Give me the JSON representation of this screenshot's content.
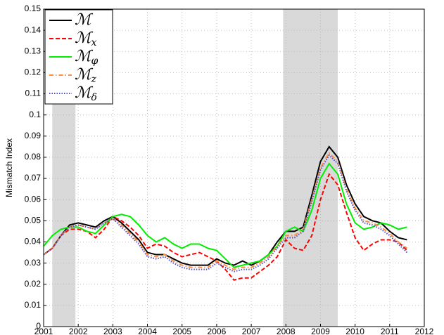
{
  "chart_data": {
    "type": "line",
    "ylabel": "Mismatch Index",
    "x": [
      2001,
      2001.25,
      2001.5,
      2001.75,
      2002,
      2002.25,
      2002.5,
      2002.75,
      2003,
      2003.25,
      2003.5,
      2003.75,
      2004,
      2004.25,
      2004.5,
      2004.75,
      2005,
      2005.25,
      2005.5,
      2005.75,
      2006,
      2006.25,
      2006.5,
      2006.75,
      2007,
      2007.25,
      2007.5,
      2007.75,
      2008,
      2008.25,
      2008.5,
      2008.75,
      2009,
      2009.25,
      2009.5,
      2009.75,
      2010,
      2010.25,
      2010.5,
      2010.75,
      2011,
      2011.25,
      2011.5
    ],
    "series": [
      {
        "name": "ℳ",
        "color": "#000000",
        "dash": "solid",
        "values": [
          0.034,
          0.037,
          0.043,
          0.048,
          0.049,
          0.048,
          0.047,
          0.05,
          0.052,
          0.049,
          0.045,
          0.041,
          0.035,
          0.034,
          0.034,
          0.032,
          0.03,
          0.029,
          0.029,
          0.029,
          0.032,
          0.03,
          0.029,
          0.031,
          0.029,
          0.031,
          0.034,
          0.04,
          0.045,
          0.045,
          0.047,
          0.062,
          0.078,
          0.085,
          0.08,
          0.067,
          0.058,
          0.052,
          0.05,
          0.049,
          0.045,
          0.042,
          0.041
        ]
      },
      {
        "name": "ℳx",
        "color": "#ff0000",
        "dash": "dashed",
        "values": [
          0.034,
          0.037,
          0.043,
          0.046,
          0.046,
          0.045,
          0.042,
          0.046,
          0.052,
          0.05,
          0.047,
          0.043,
          0.037,
          0.039,
          0.038,
          0.035,
          0.033,
          0.034,
          0.035,
          0.033,
          0.031,
          0.027,
          0.022,
          0.023,
          0.023,
          0.026,
          0.029,
          0.033,
          0.041,
          0.037,
          0.036,
          0.043,
          0.06,
          0.072,
          0.067,
          0.054,
          0.042,
          0.036,
          0.039,
          0.041,
          0.041,
          0.04,
          0.036
        ]
      },
      {
        "name": "ℳφ",
        "color": "#00ee00",
        "dash": "solid",
        "values": [
          0.038,
          0.043,
          0.046,
          0.047,
          0.047,
          0.045,
          0.044,
          0.048,
          0.052,
          0.053,
          0.052,
          0.048,
          0.043,
          0.04,
          0.042,
          0.039,
          0.037,
          0.039,
          0.039,
          0.037,
          0.036,
          0.032,
          0.028,
          0.029,
          0.03,
          0.031,
          0.034,
          0.038,
          0.045,
          0.047,
          0.045,
          0.055,
          0.07,
          0.077,
          0.072,
          0.058,
          0.049,
          0.046,
          0.047,
          0.049,
          0.048,
          0.046,
          0.047
        ]
      },
      {
        "name": "ℳz",
        "color": "#ff8c3c",
        "dash": "dashdot",
        "values": [
          0.034,
          0.037,
          0.043,
          0.047,
          0.048,
          0.047,
          0.046,
          0.049,
          0.051,
          0.048,
          0.044,
          0.04,
          0.034,
          0.033,
          0.034,
          0.031,
          0.029,
          0.028,
          0.028,
          0.028,
          0.031,
          0.029,
          0.027,
          0.028,
          0.028,
          0.03,
          0.033,
          0.038,
          0.043,
          0.043,
          0.046,
          0.06,
          0.075,
          0.082,
          0.078,
          0.065,
          0.056,
          0.05,
          0.049,
          0.047,
          0.044,
          0.04,
          0.037
        ]
      },
      {
        "name": "ℳδ",
        "color": "#5050c8",
        "dash": "dotted",
        "values": [
          0.034,
          0.037,
          0.043,
          0.047,
          0.048,
          0.047,
          0.046,
          0.049,
          0.051,
          0.047,
          0.043,
          0.039,
          0.033,
          0.032,
          0.033,
          0.03,
          0.028,
          0.027,
          0.027,
          0.027,
          0.03,
          0.028,
          0.026,
          0.027,
          0.027,
          0.029,
          0.032,
          0.037,
          0.042,
          0.042,
          0.045,
          0.059,
          0.074,
          0.081,
          0.077,
          0.064,
          0.055,
          0.049,
          0.048,
          0.046,
          0.043,
          0.039,
          0.035
        ]
      }
    ],
    "shaded": [
      [
        2001.25,
        2001.92
      ],
      [
        2007.92,
        2009.5
      ]
    ],
    "xlim": [
      2001,
      2012
    ],
    "xticks": [
      2001,
      2002,
      2003,
      2004,
      2005,
      2006,
      2007,
      2008,
      2009,
      2010,
      2011,
      2012
    ],
    "ylim": [
      0,
      0.15
    ],
    "yticks": [
      0,
      0.01,
      0.02,
      0.03,
      0.04,
      0.05,
      0.06,
      0.07,
      0.08,
      0.09,
      0.1,
      0.11,
      0.12,
      0.13,
      0.14,
      0.15
    ],
    "grid": true,
    "legend": "upper-left"
  }
}
